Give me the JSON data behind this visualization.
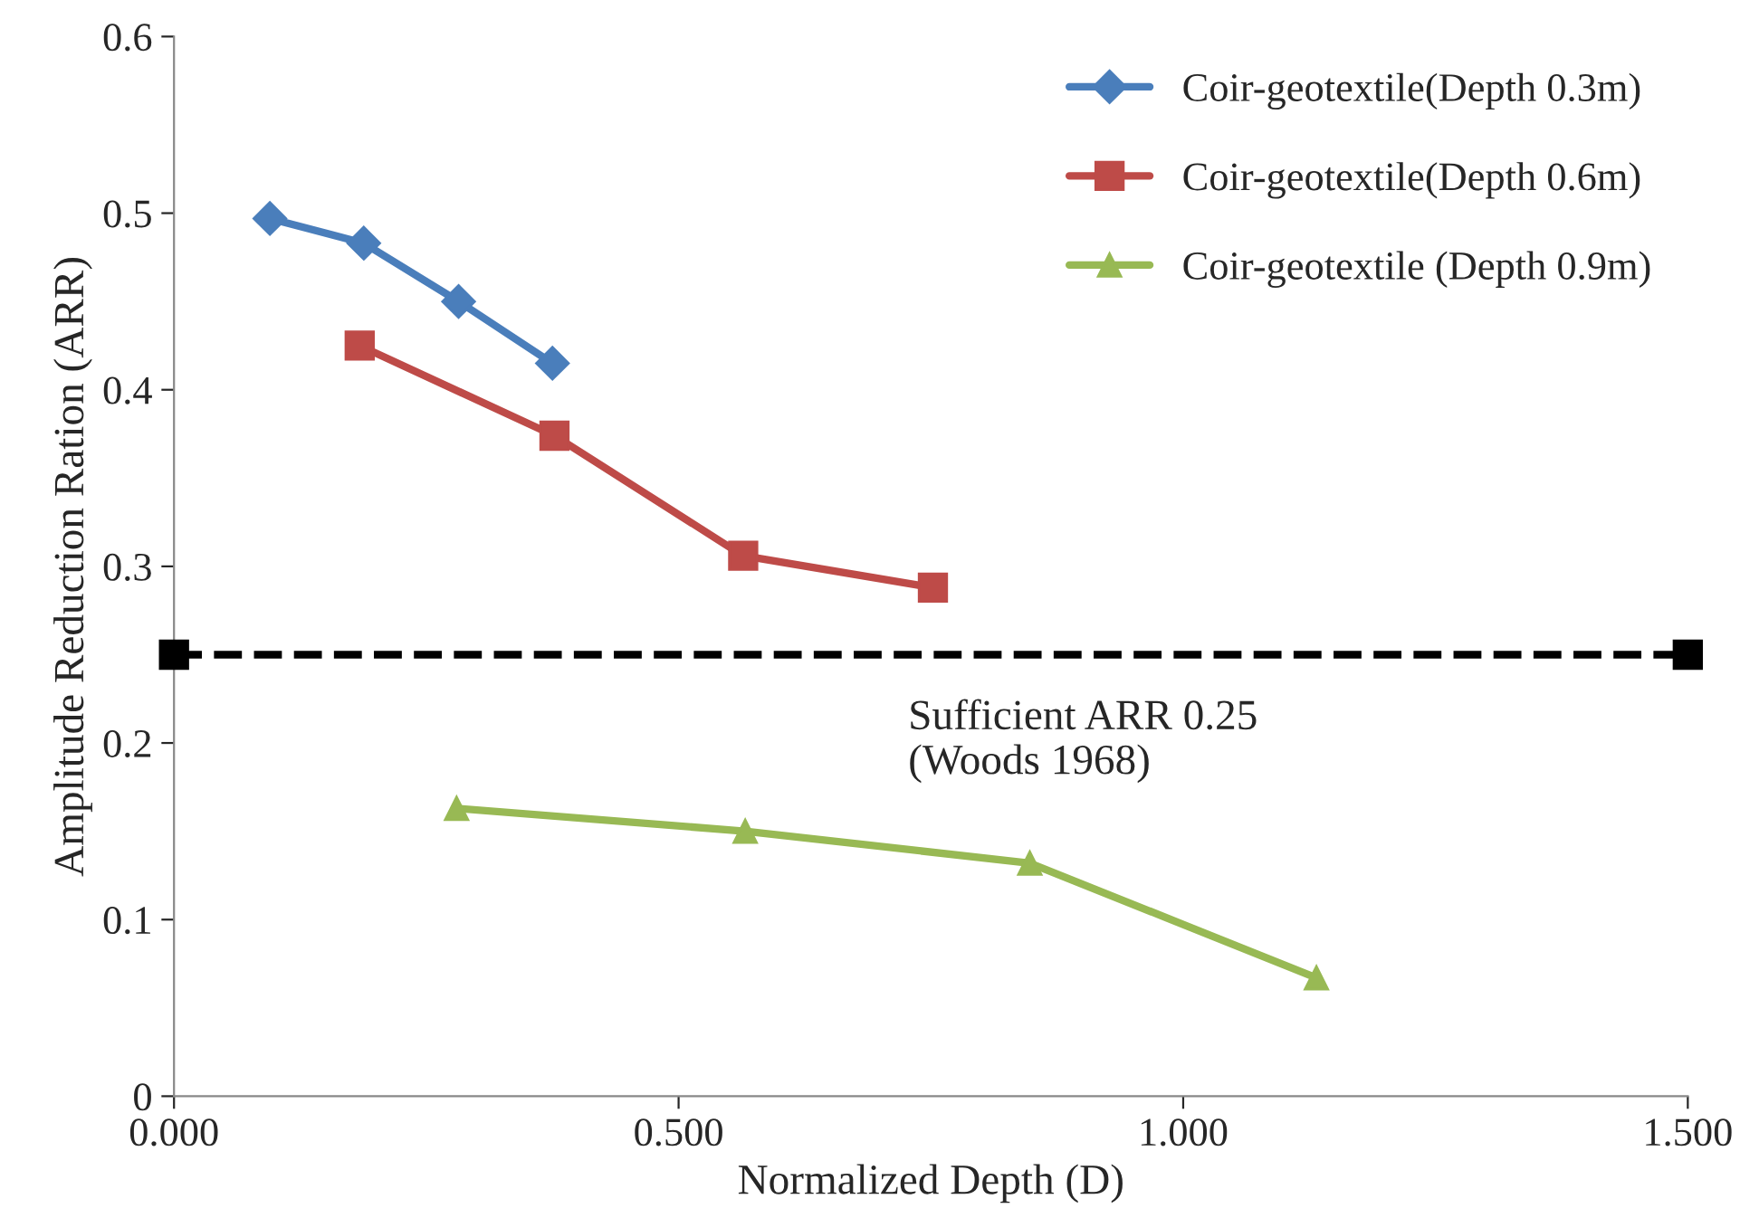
{
  "chart_data": {
    "type": "line",
    "xlabel": "Normalized Depth (D)",
    "ylabel": "Amplitude Reduction Ration (ARR)",
    "xlim": [
      0,
      1.5
    ],
    "ylim": [
      0,
      0.6
    ],
    "xticks": [
      {
        "value": 0,
        "label": "0.000"
      },
      {
        "value": 0.5,
        "label": "0.500"
      },
      {
        "value": 1.0,
        "label": "1.000"
      },
      {
        "value": 1.5,
        "label": "1.500"
      }
    ],
    "yticks": [
      0,
      0.1,
      0.2,
      0.3,
      0.4,
      0.5,
      0.6
    ],
    "grid": false,
    "legend": "top right",
    "series": [
      {
        "name": "Coir-geotextile(Depth 0.3m)",
        "color": "#4a7ebb",
        "marker": "diamond",
        "x": [
          0.095,
          0.188,
          0.282,
          0.375
        ],
        "values": [
          0.497,
          0.483,
          0.45,
          0.415
        ]
      },
      {
        "name": "Coir-geotextile(Depth 0.6m)",
        "color": "#be4b48",
        "marker": "square",
        "x": [
          0.184,
          0.377,
          0.564,
          0.752
        ],
        "values": [
          0.425,
          0.374,
          0.306,
          0.288
        ]
      },
      {
        "name": "Coir-geotextile (Depth 0.9m)",
        "color": "#98b954",
        "marker": "triangle",
        "x": [
          0.28,
          0.566,
          0.848,
          1.132
        ],
        "values": [
          0.163,
          0.15,
          0.132,
          0.067
        ]
      },
      {
        "color": "#000000",
        "marker": "square",
        "line_style": "dashed",
        "x": [
          0,
          1.5
        ],
        "values": [
          0.25,
          0.25
        ]
      }
    ],
    "annotations": [
      "Sufficient ARR 0.25\n(Woods 1968)"
    ]
  }
}
